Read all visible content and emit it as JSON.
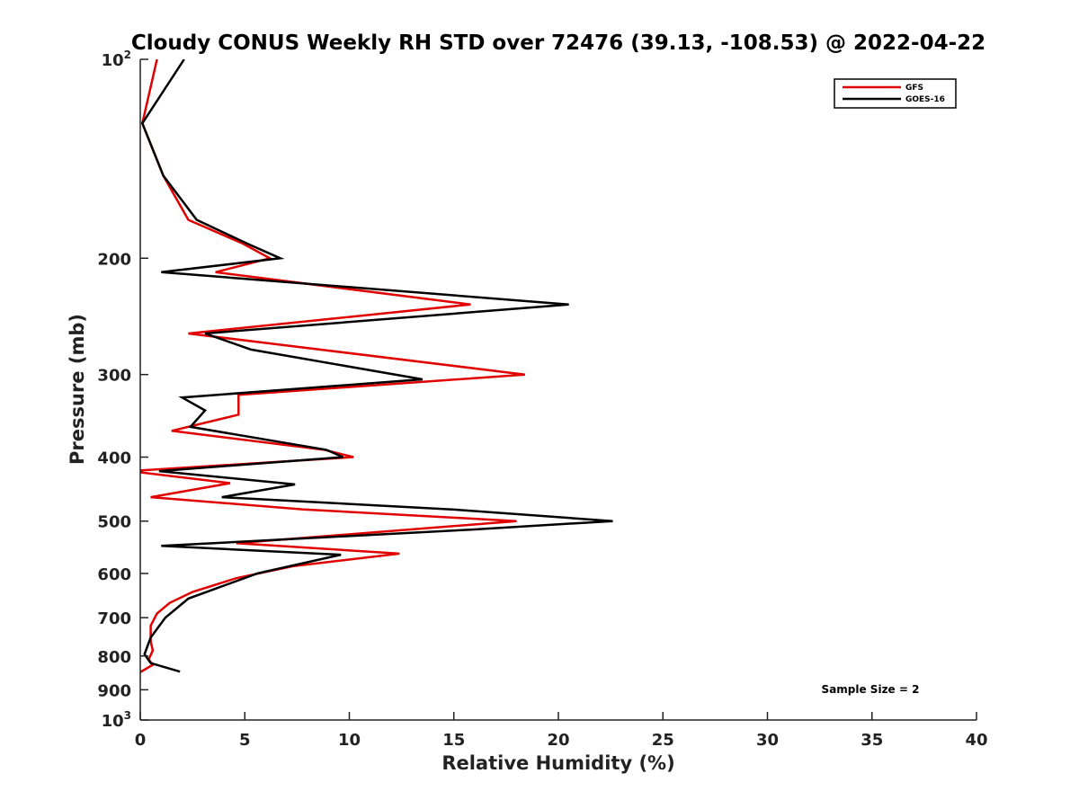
{
  "chart_data": {
    "type": "line",
    "title": "Cloudy CONUS Weekly RH STD over 72476 (39.13, -108.53) @ 2022-04-22",
    "xlabel": "Relative Humidity (%)",
    "ylabel": "Pressure (mb)",
    "xlim": [
      0,
      40
    ],
    "ylim": [
      100,
      1000
    ],
    "y_scale": "log",
    "y_reversed": true,
    "grid": false,
    "legend_position": "top-right",
    "x_ticks": [
      0,
      5,
      10,
      15,
      20,
      25,
      30,
      35,
      40
    ],
    "y_ticks": [
      {
        "value": 100,
        "base": "10",
        "exp": "2"
      },
      {
        "value": 200,
        "label": "200"
      },
      {
        "value": 300,
        "label": "300"
      },
      {
        "value": 400,
        "label": "400"
      },
      {
        "value": 500,
        "label": "500"
      },
      {
        "value": 600,
        "label": "600"
      },
      {
        "value": 700,
        "label": "700"
      },
      {
        "value": 800,
        "label": "800"
      },
      {
        "value": 900,
        "label": "900"
      },
      {
        "value": 1000,
        "base": "10",
        "exp": "3"
      }
    ],
    "annotation": "Sample Size = 2",
    "series": [
      {
        "name": "GFS",
        "color": "#e00000",
        "points": [
          [
            0.8,
            100
          ],
          [
            0.1,
            125
          ],
          [
            1.1,
            150
          ],
          [
            2.3,
            175
          ],
          [
            4.9,
            190
          ],
          [
            6.2,
            200
          ],
          [
            3.6,
            210
          ],
          [
            15.8,
            235
          ],
          [
            2.3,
            260
          ],
          [
            18.4,
            300
          ],
          [
            4.7,
            322
          ],
          [
            4.7,
            345
          ],
          [
            1.5,
            365
          ],
          [
            8.8,
            390
          ],
          [
            10.2,
            400
          ],
          [
            -0.5,
            420
          ],
          [
            4.3,
            438
          ],
          [
            0.5,
            460
          ],
          [
            7.8,
            480
          ],
          [
            18.0,
            500
          ],
          [
            4.6,
            540
          ],
          [
            12.4,
            560
          ],
          [
            7.3,
            585
          ],
          [
            4.6,
            610
          ],
          [
            2.5,
            640
          ],
          [
            1.4,
            665
          ],
          [
            0.8,
            690
          ],
          [
            0.5,
            720
          ],
          [
            0.5,
            760
          ],
          [
            0.6,
            785
          ],
          [
            0.4,
            810
          ],
          [
            0.6,
            825
          ],
          [
            -0.1,
            850
          ]
        ]
      },
      {
        "name": "GOES-16",
        "color": "#000000",
        "points": [
          [
            2.1,
            100
          ],
          [
            0.1,
            125
          ],
          [
            1.1,
            150
          ],
          [
            2.7,
            175
          ],
          [
            5.1,
            190
          ],
          [
            6.7,
            200
          ],
          [
            1.0,
            210
          ],
          [
            20.5,
            235
          ],
          [
            3.1,
            260
          ],
          [
            5.3,
            275
          ],
          [
            13.5,
            305
          ],
          [
            2.0,
            325
          ],
          [
            3.1,
            340
          ],
          [
            2.4,
            360
          ],
          [
            8.9,
            390
          ],
          [
            9.7,
            400
          ],
          [
            0.9,
            420
          ],
          [
            7.4,
            440
          ],
          [
            3.9,
            460
          ],
          [
            14.9,
            480
          ],
          [
            22.6,
            500
          ],
          [
            15.8,
            515
          ],
          [
            1.0,
            545
          ],
          [
            9.6,
            562
          ],
          [
            5.6,
            600
          ],
          [
            2.3,
            655
          ],
          [
            1.2,
            700
          ],
          [
            0.5,
            750
          ],
          [
            0.2,
            795
          ],
          [
            0.5,
            820
          ],
          [
            1.9,
            845
          ]
        ]
      }
    ]
  }
}
